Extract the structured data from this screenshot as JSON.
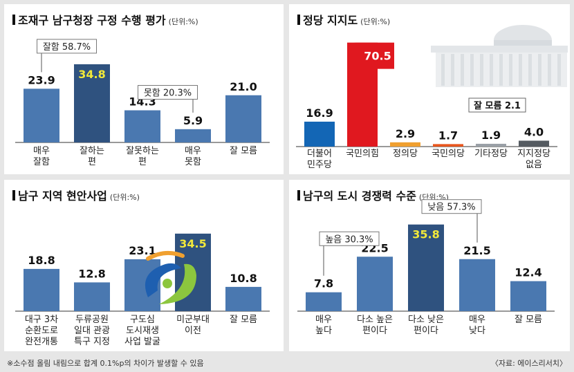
{
  "colors": {
    "bar_blue": "#4a78b0",
    "bar_dark": "#2f527f",
    "highlight_text": "#f2e93a",
    "bar_red": "#e0181f",
    "bar_orange": "#f0a030",
    "bar_gray": "#9aa0a6",
    "bar_darkgray": "#555b61"
  },
  "chart_data": [
    {
      "id": "c1",
      "type": "bar",
      "title": "조재구 남구청장 구정 수행 평가",
      "unit": "(단위:%)",
      "categories": [
        "매우\n잘함",
        "잘하는\n편",
        "잘못하는\n편",
        "매우\n못함",
        "잘 모름"
      ],
      "values": [
        23.9,
        34.8,
        14.3,
        5.9,
        21.0
      ],
      "value_labels": [
        "23.9",
        "34.8",
        "14.3",
        "5.9",
        "21.0"
      ],
      "highlight": [
        1
      ],
      "ylim": [
        0,
        40
      ],
      "groups": [
        {
          "label": "잘함 58.7%",
          "from": 0,
          "to": 1
        },
        {
          "label": "못함 20.3%",
          "from": 2,
          "to": 3
        }
      ]
    },
    {
      "id": "c2",
      "type": "bar",
      "title": "정당 지지도",
      "unit": "(단위:%)",
      "categories": [
        "더불어\n민주당",
        "국민의힘",
        "정의당",
        "국민의당",
        "기타정당",
        "지지정당\n없음"
      ],
      "values": [
        16.9,
        70.5,
        2.9,
        1.7,
        1.9,
        4.0
      ],
      "value_labels": [
        "16.9",
        "70.5",
        "2.9",
        "1.7",
        "1.9",
        "4.0"
      ],
      "bar_colors": [
        "#1366b5",
        "#e0181f",
        "#f0a030",
        "#e8561e",
        "#9aa0a6",
        "#555b61"
      ],
      "ylim": [
        0,
        75
      ],
      "annotation": "잘 모름 2.1"
    },
    {
      "id": "c3",
      "type": "bar",
      "title": "남구 지역 현안사업",
      "unit": "(단위:%)",
      "categories": [
        "대구 3차\n순환도로\n완전개통",
        "두류공원\n일대 관광\n특구 지정",
        "구도심\n도시재생\n사업 발굴",
        "미군부대\n이전",
        "잘 모름"
      ],
      "values": [
        18.8,
        12.8,
        23.1,
        34.5,
        10.8
      ],
      "value_labels": [
        "18.8",
        "12.8",
        "23.1",
        "34.5",
        "10.8"
      ],
      "highlight": [
        3
      ],
      "ylim": [
        0,
        40
      ]
    },
    {
      "id": "c4",
      "type": "bar",
      "title": "남구의 도시 경쟁력 수준",
      "unit": "(단위:%)",
      "categories": [
        "매우\n높다",
        "다소 높은\n편이다",
        "다소 낮은\n편이다",
        "매우\n낮다",
        "잘 모름"
      ],
      "values": [
        7.8,
        22.5,
        35.8,
        21.5,
        12.4
      ],
      "value_labels": [
        "7.8",
        "22.5",
        "35.8",
        "21.5",
        "12.4"
      ],
      "highlight": [
        2
      ],
      "ylim": [
        0,
        40
      ],
      "groups": [
        {
          "label": "높음 30.3%",
          "from": 0,
          "to": 1
        },
        {
          "label": "낮음 57.3%",
          "from": 2,
          "to": 3
        }
      ]
    }
  ],
  "footer": {
    "note": "※소수점 올림 내림으로 합계 0.1%p의 차이가 발생할 수 있음",
    "source": "〈자료: 에이스리서치〉"
  }
}
